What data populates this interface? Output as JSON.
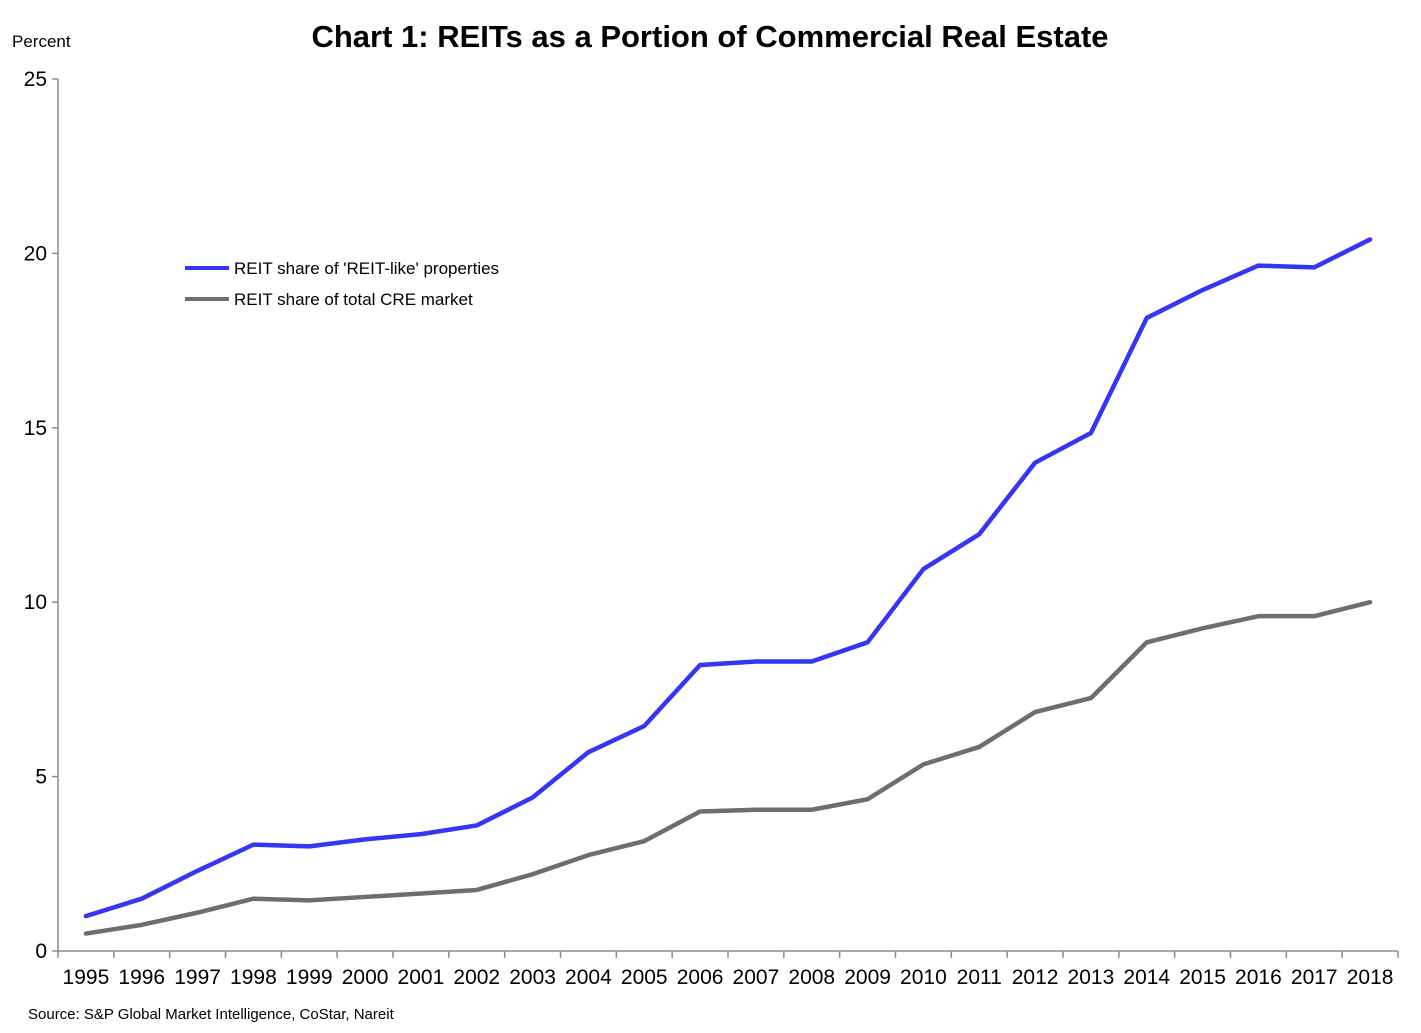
{
  "chart_data": {
    "type": "line",
    "title": "Chart 1: REITs as a Portion of Commercial Real Estate",
    "ylabel": "Percent",
    "xlabel": "",
    "source": "Source: S&P Global Market Intelligence, CoStar, Nareit",
    "ylim": [
      0,
      25
    ],
    "yticks": [
      0,
      5,
      10,
      15,
      20,
      25
    ],
    "grid": false,
    "legend_position": "upper-left",
    "x": [
      "1995",
      "1996",
      "1997",
      "1998",
      "1999",
      "2000",
      "2001",
      "2002",
      "2003",
      "2004",
      "2005",
      "2006",
      "2007",
      "2008",
      "2009",
      "2010",
      "2011",
      "2012",
      "2013",
      "2014",
      "2015",
      "2016",
      "2017",
      "2018"
    ],
    "series": [
      {
        "name": "REIT share of 'REIT-like' properties",
        "color": "#3535f5",
        "values": [
          1.0,
          1.5,
          2.3,
          3.05,
          3.0,
          3.2,
          3.35,
          3.6,
          4.4,
          5.7,
          6.45,
          8.2,
          8.3,
          8.3,
          8.85,
          10.95,
          11.95,
          14.0,
          14.85,
          18.15,
          18.95,
          19.65,
          19.6,
          20.4
        ]
      },
      {
        "name": "REIT share of total CRE market",
        "color": "#6e6e6e",
        "values": [
          0.5,
          0.75,
          1.1,
          1.5,
          1.45,
          1.55,
          1.65,
          1.75,
          2.2,
          2.75,
          3.15,
          4.0,
          4.05,
          4.05,
          4.35,
          5.35,
          5.85,
          6.85,
          7.25,
          8.85,
          9.25,
          9.6,
          9.6,
          10.0
        ]
      }
    ]
  }
}
